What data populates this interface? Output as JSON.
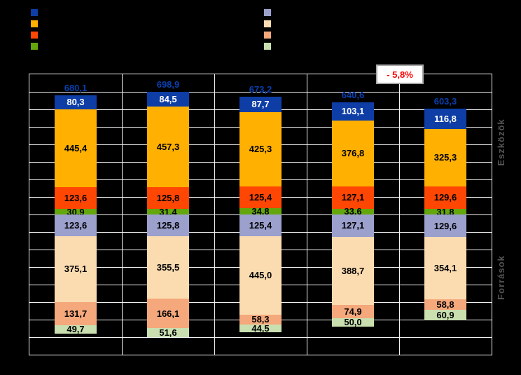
{
  "legend": {
    "left_swatches": [
      {
        "name": "dark-blue",
        "color": "#0E3EA5"
      },
      {
        "name": "orange",
        "color": "#FFB000"
      },
      {
        "name": "orange-red",
        "color": "#FF4603"
      },
      {
        "name": "yellow-green",
        "color": "#63A70D"
      }
    ],
    "right_swatches": [
      {
        "name": "lavender",
        "color": "#9BA0CD"
      },
      {
        "name": "cream",
        "color": "#FBDCB1"
      },
      {
        "name": "salmon",
        "color": "#F4A87B"
      },
      {
        "name": "light-green",
        "color": "#C9DFB0"
      }
    ]
  },
  "chart_data": {
    "type": "bar",
    "subtype": "mirrored-stacked-bar (assets stack up, liabilities stack down from shared axis)",
    "title": "",
    "axis": {
      "value_min": -800,
      "value_max": 800,
      "grid_step": 100,
      "grid": true,
      "tick_labels_visible": false
    },
    "group_labels": {
      "assets": "Eszközök",
      "liabilities": "Források"
    },
    "total_label_color": "#0A3FAF",
    "asset_series": [
      {
        "name": "dark-blue",
        "color": "#0E3EA5",
        "label_color": "#FFFFFF"
      },
      {
        "name": "orange",
        "color": "#FFB000",
        "label_color": "#000000"
      },
      {
        "name": "orange-red",
        "color": "#FF4603",
        "label_color": "#000000"
      },
      {
        "name": "yellow-green",
        "color": "#63A70D",
        "label_color": "#000000"
      }
    ],
    "liability_series": [
      {
        "name": "lavender",
        "color": "#9BA0CD",
        "label_color": "#000000"
      },
      {
        "name": "cream",
        "color": "#FBDCB1",
        "label_color": "#000000"
      },
      {
        "name": "salmon",
        "color": "#F4A87B",
        "label_color": "#000000"
      },
      {
        "name": "light-green",
        "color": "#C9DFB0",
        "label_color": "#000000"
      }
    ],
    "columns": [
      {
        "total_label": "680,1",
        "assets": [
          {
            "value": 80.3,
            "label": "80,3"
          },
          {
            "value": 445.4,
            "label": "445,4"
          },
          {
            "value": 123.6,
            "label": "123,6"
          },
          {
            "value": 30.9,
            "label": "30,9"
          }
        ],
        "liabilities": [
          {
            "value": 123.6,
            "label": "123,6"
          },
          {
            "value": 375.1,
            "label": "375,1"
          },
          {
            "value": 131.7,
            "label": "131,7"
          },
          {
            "value": 49.7,
            "label": "49,7"
          }
        ]
      },
      {
        "total_label": "698,9",
        "assets": [
          {
            "value": 84.5,
            "label": "84,5"
          },
          {
            "value": 457.3,
            "label": "457,3"
          },
          {
            "value": 125.8,
            "label": "125,8"
          },
          {
            "value": 31.4,
            "label": "31,4"
          }
        ],
        "liabilities": [
          {
            "value": 125.8,
            "label": "125,8"
          },
          {
            "value": 355.5,
            "label": "355,5"
          },
          {
            "value": 166.1,
            "label": "166,1"
          },
          {
            "value": 51.6,
            "label": "51,6"
          }
        ]
      },
      {
        "total_label": "673,2",
        "assets": [
          {
            "value": 87.7,
            "label": "87,7"
          },
          {
            "value": 425.3,
            "label": "425,3"
          },
          {
            "value": 125.4,
            "label": "125,4"
          },
          {
            "value": 34.8,
            "label": "34,8"
          }
        ],
        "liabilities": [
          {
            "value": 125.4,
            "label": "125,4"
          },
          {
            "value": 445.0,
            "label": "445,0"
          },
          {
            "value": 58.3,
            "label": "58,3"
          },
          {
            "value": 44.5,
            "label": "44,5"
          }
        ]
      },
      {
        "total_label": "640,6",
        "assets": [
          {
            "value": 103.1,
            "label": "103,1"
          },
          {
            "value": 376.8,
            "label": "376,8"
          },
          {
            "value": 127.1,
            "label": "127,1"
          },
          {
            "value": 33.6,
            "label": "33,6"
          }
        ],
        "liabilities": [
          {
            "value": 127.1,
            "label": "127,1"
          },
          {
            "value": 388.7,
            "label": "388,7"
          },
          {
            "value": 74.9,
            "label": "74,9"
          },
          {
            "value": 50.0,
            "label": "50,0"
          }
        ]
      },
      {
        "total_label": "603,3",
        "assets": [
          {
            "value": 116.8,
            "label": "116,8"
          },
          {
            "value": 325.3,
            "label": "325,3"
          },
          {
            "value": 129.6,
            "label": "129,6"
          },
          {
            "value": 31.8,
            "label": "31,8"
          }
        ],
        "liabilities": [
          {
            "value": 129.6,
            "label": "129,6"
          },
          {
            "value": 354.1,
            "label": "354,1"
          },
          {
            "value": 58.8,
            "label": "58,8"
          },
          {
            "value": 60.9,
            "label": "60,9"
          }
        ]
      }
    ],
    "annotation": {
      "text": "- 5,8%",
      "color": "#FF0000",
      "background": "#FFFFFF",
      "border_color": "#A6A6A6"
    }
  }
}
